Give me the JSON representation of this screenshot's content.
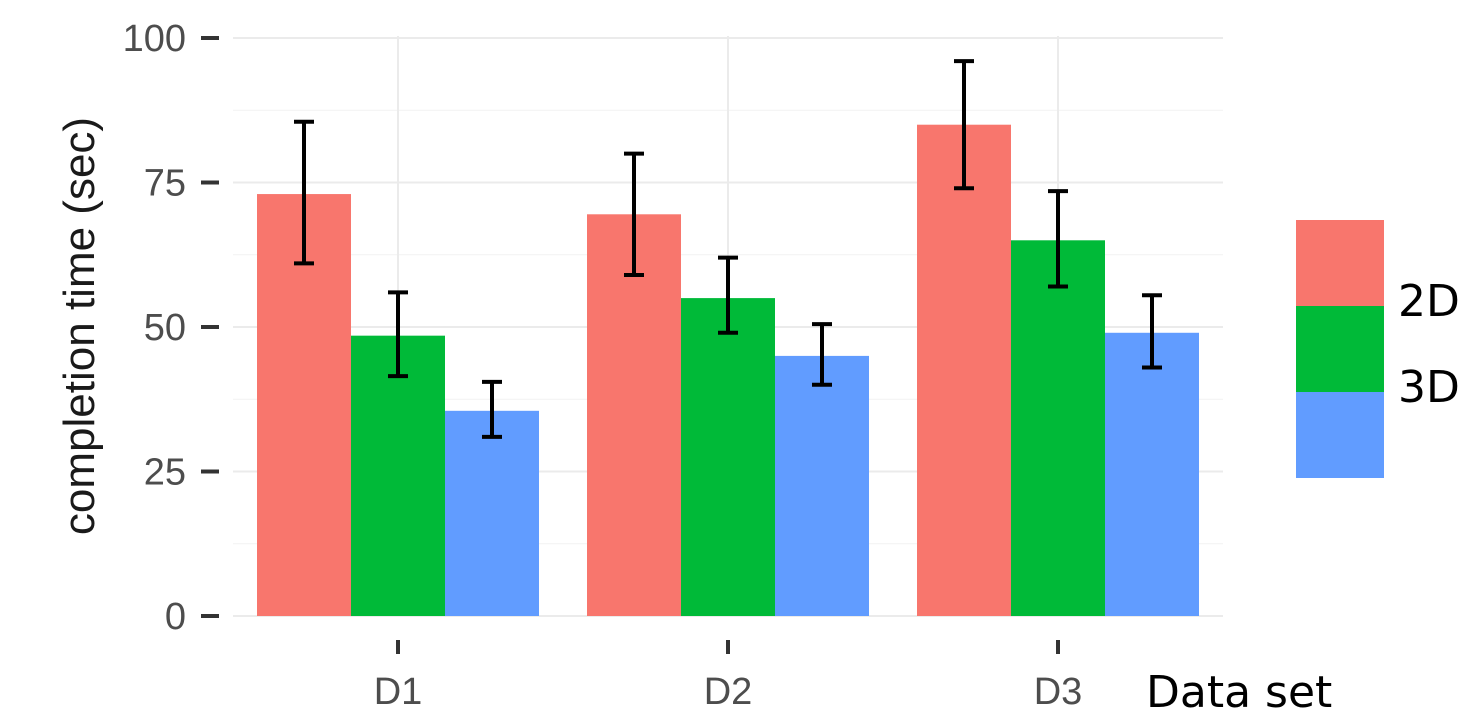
{
  "chart_data": {
    "type": "bar",
    "categories": [
      "D1",
      "D2",
      "D3"
    ],
    "ylabel": "completion time (sec)",
    "xlabel": "Data set",
    "ylim": [
      0,
      100
    ],
    "yticks": [
      0,
      25,
      50,
      75,
      100
    ],
    "grid": true,
    "legend_position": "right",
    "series": [
      {
        "name": "2D",
        "color": "#F8766D",
        "values": [
          73,
          69.5,
          85
        ],
        "err_low": [
          61,
          59,
          74
        ],
        "err_high": [
          85.5,
          80,
          96
        ]
      },
      {
        "name": "3D",
        "color": "#00BA38",
        "values": [
          48.5,
          55,
          65
        ],
        "err_low": [
          41.5,
          49,
          57
        ],
        "err_high": [
          56,
          62,
          73.5
        ]
      },
      {
        "name": "",
        "color": "#619CFF",
        "values": [
          35.5,
          45,
          49
        ],
        "err_low": [
          31,
          40,
          43
        ],
        "err_high": [
          40.5,
          50.5,
          55.5
        ]
      }
    ]
  }
}
